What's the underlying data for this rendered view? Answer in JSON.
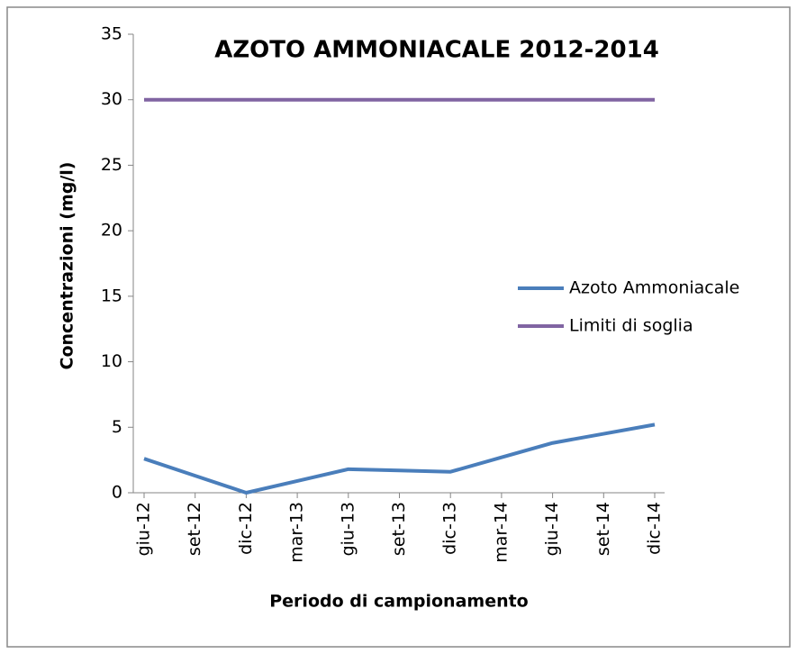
{
  "chart_data": {
    "type": "line",
    "title": "AZOTO AMMONIACALE 2012-2014",
    "x_label": "Periodo di campionamento",
    "y_label": "Concentrazioni  (mg/l)",
    "categories": [
      "giu-12",
      "set-12",
      "dic-12",
      "mar-13",
      "giu-13",
      "set-13",
      "dic-13",
      "mar-14",
      "giu-14",
      "set-14",
      "dic-14"
    ],
    "series": [
      {
        "name": "Azoto Ammoniacale",
        "color": "#4a7ebb",
        "values": [
          2.6,
          1.3,
          0,
          0.9,
          1.8,
          1.7,
          1.6,
          2.7,
          3.8,
          4.5,
          5.2
        ]
      },
      {
        "name": "Limiti di soglia",
        "color": "#8064a2",
        "values": [
          30,
          30,
          30,
          30,
          30,
          30,
          30,
          30,
          30,
          30,
          30
        ]
      }
    ],
    "ylim": [
      0,
      35
    ],
    "yticks": [
      0,
      5,
      10,
      15,
      20,
      25,
      30,
      35
    ],
    "grid": false,
    "legend": "right"
  }
}
